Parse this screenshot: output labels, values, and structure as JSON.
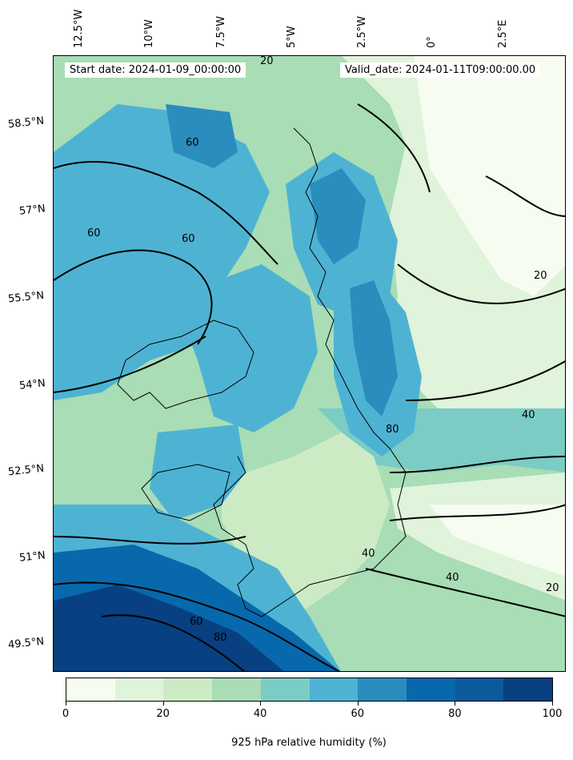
{
  "header": {
    "start_date": "Start date: 2024-01-09_00:00:00",
    "valid_date": "Valid_date: 2024-01-11T09:00:00.00"
  },
  "longitude_labels": [
    "12.5°W",
    "10°W",
    "7.5°W",
    "5°W",
    "2.5°W",
    "0°",
    "2.5°E"
  ],
  "latitude_labels": [
    "58.5°N",
    "57°N",
    "55.5°N",
    "54°N",
    "52.5°N",
    "51°N",
    "49.5°N"
  ],
  "contour_labels": [
    "20",
    "40",
    "60",
    "80"
  ],
  "colorbar": {
    "title": "925 hPa relative humidity (%)",
    "ticks": [
      "0",
      "20",
      "40",
      "60",
      "80",
      "100"
    ],
    "colors": [
      "#f7fcf0",
      "#e0f3db",
      "#ccebc5",
      "#a8ddb5",
      "#7bccc4",
      "#4eb3d3",
      "#2b8cbe",
      "#0868ac",
      "#0a5a9c",
      "#084081"
    ]
  }
}
